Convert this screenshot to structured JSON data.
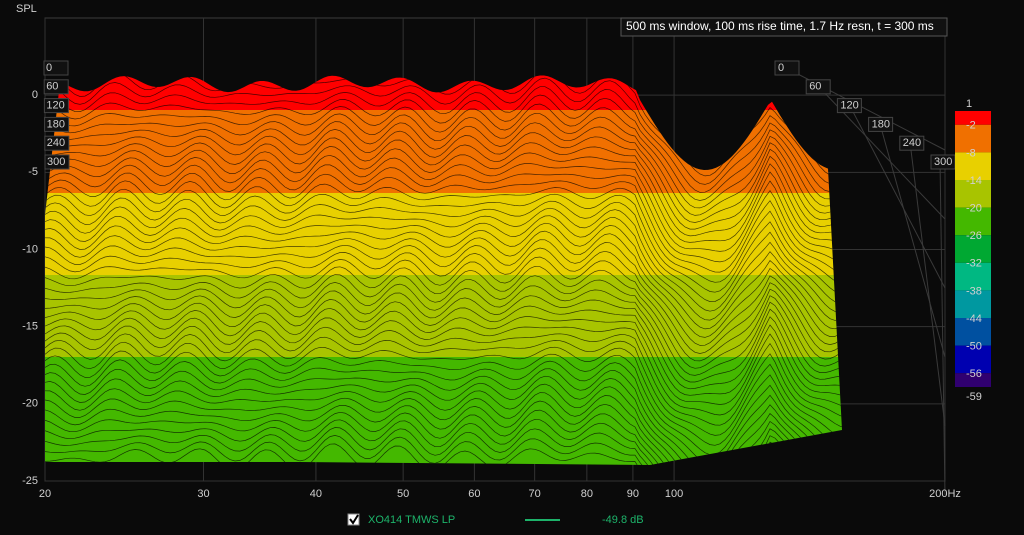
{
  "chart_data": {
    "type": "waterfall",
    "y_label": "SPL",
    "annotation": "500 ms window, 100 ms rise time,  1.7 Hz resn, t = 300 ms",
    "xlim": [
      20,
      200
    ],
    "log_x": true,
    "xticks": [
      20,
      30,
      40,
      50,
      60,
      70,
      80,
      90,
      100,
      {
        "value": 200,
        "label": "200Hz"
      }
    ],
    "ylim": [
      -25,
      5
    ],
    "yticks": [
      -25,
      -20,
      -15,
      -10,
      -5,
      0
    ],
    "grid": true,
    "time_ticks": [
      0,
      60,
      120,
      180,
      240,
      300
    ],
    "colorbar": {
      "ticks": [
        1,
        -2,
        -8,
        -14,
        -20,
        -26,
        -32,
        -38,
        -44,
        -50,
        -56,
        -59
      ],
      "colors": [
        "#ff0000",
        "#f07000",
        "#e8d000",
        "#a8c400",
        "#44b800",
        "#00a832",
        "#00b882",
        "#0098a0",
        "#0050a0",
        "#0000b0",
        "#300070"
      ]
    },
    "legend": {
      "name": "XO414 TMWS LP",
      "color": "#1db36a",
      "label": "-49.8 dB"
    }
  }
}
